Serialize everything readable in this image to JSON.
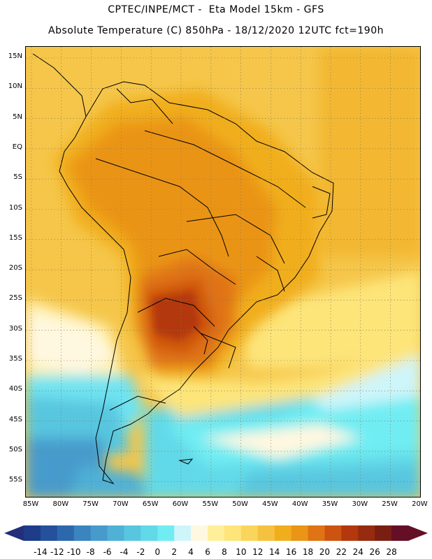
{
  "header": {
    "title_line1": "CPTEC/INPE/MCT -  Eta Model 15km - GFS",
    "title_line2": "Absolute Temperature (C) 850hPa - 18/12/2020 12UTC fct=190h"
  },
  "map": {
    "lat_labels": [
      "15N",
      "10N",
      "5N",
      "EQ",
      "5S",
      "10S",
      "15S",
      "20S",
      "25S",
      "30S",
      "35S",
      "40S",
      "45S",
      "50S",
      "55S"
    ],
    "lon_labels": [
      "85W",
      "80W",
      "75W",
      "70W",
      "65W",
      "60W",
      "55W",
      "50W",
      "45W",
      "40W",
      "35W",
      "30W",
      "25W",
      "20W"
    ]
  },
  "colorbar": {
    "tick_labels": [
      "-14",
      "-12",
      "-10",
      "-8",
      "-6",
      "-4",
      "-2",
      "0",
      "2",
      "4",
      "6",
      "8",
      "10",
      "12",
      "14",
      "16",
      "18",
      "20",
      "22",
      "24",
      "26",
      "28"
    ],
    "colors": [
      "#1f3c88",
      "#24509c",
      "#2d68ad",
      "#3a84bf",
      "#469bcc",
      "#4fb1d6",
      "#58c6df",
      "#62d9e8",
      "#6fedf3",
      "#cef5fa",
      "#fff8e0",
      "#ffef9a",
      "#fde57a",
      "#fad55c",
      "#f5c240",
      "#f1ae1c",
      "#ea9418",
      "#e07314",
      "#cd5310",
      "#b3380d",
      "#962b0f",
      "#7a1e12",
      "#650f27"
    ],
    "left_arrow_color": "#232f7a",
    "right_arrow_color": "#650f27"
  }
}
